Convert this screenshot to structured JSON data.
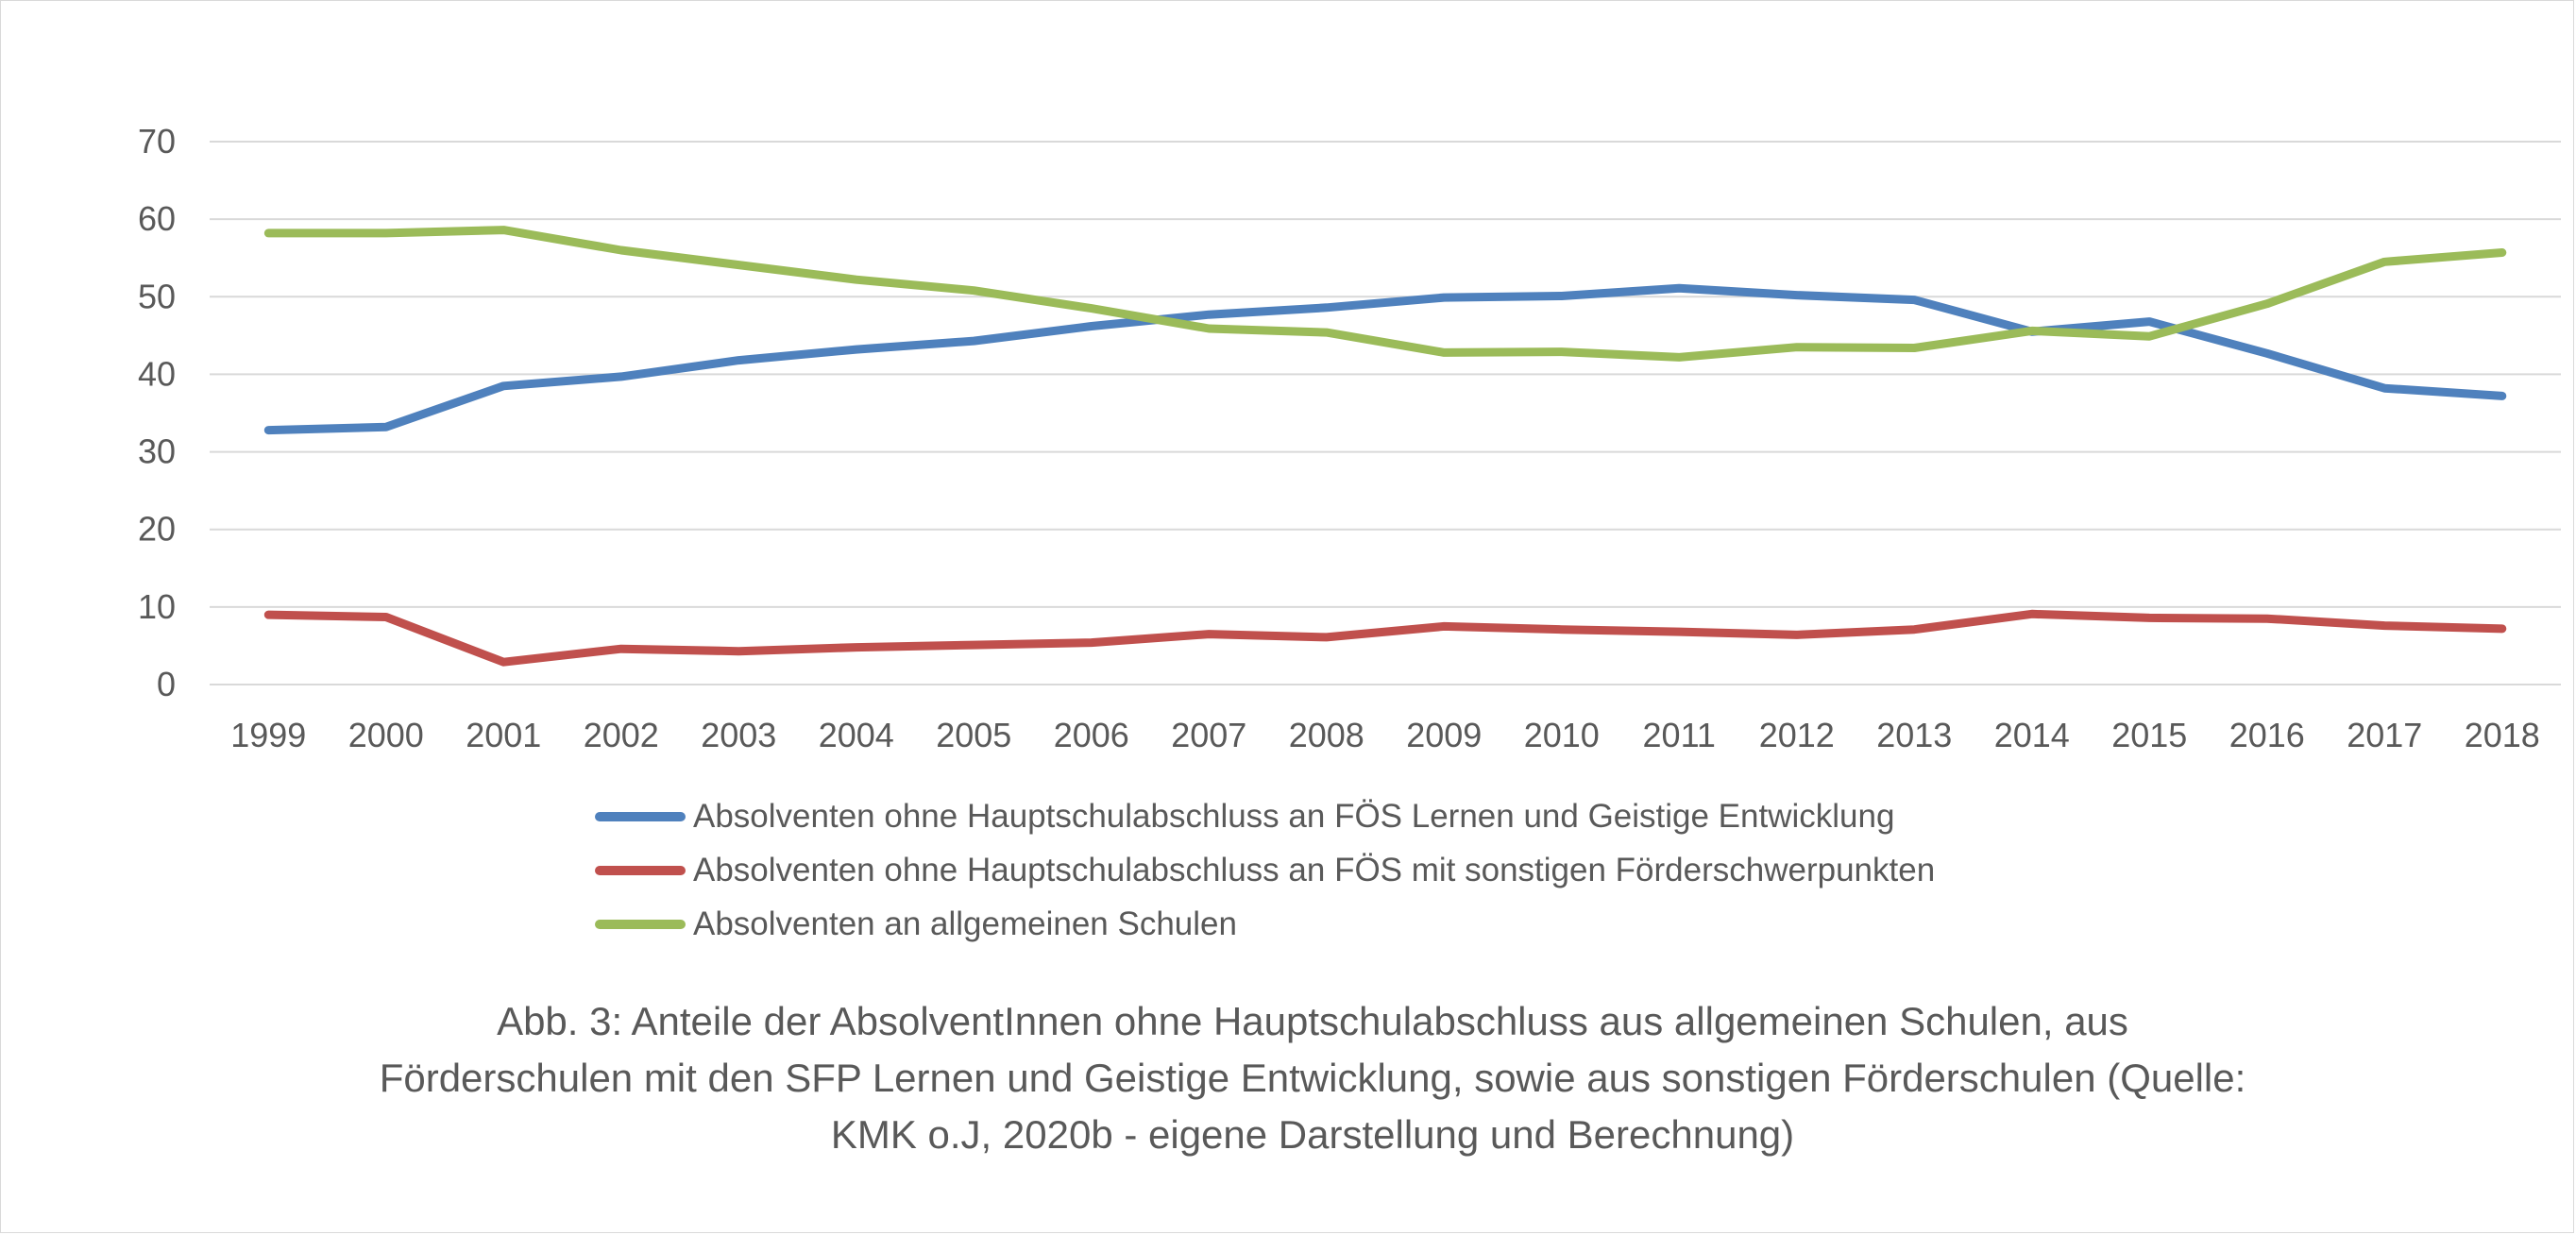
{
  "chart_data": {
    "type": "line",
    "title": "",
    "xlabel": "",
    "ylabel": "",
    "x": [
      "1999",
      "2000",
      "2001",
      "2002",
      "2003",
      "2004",
      "2005",
      "2006",
      "2007",
      "2008",
      "2009",
      "2010",
      "2011",
      "2012",
      "2013",
      "2014",
      "2015",
      "2016",
      "2017",
      "2018"
    ],
    "ylim": [
      0,
      70
    ],
    "yticks": [
      "0",
      "10",
      "20",
      "30",
      "40",
      "50",
      "60",
      "70"
    ],
    "grid": true,
    "legend_position": "bottom",
    "series": [
      {
        "name": "Absolventen ohne Hauptschulabschluss an FÖS Lernen und Geistige Entwicklung",
        "color": "#4f81bd",
        "values": [
          32.8,
          33.2,
          38.5,
          39.7,
          41.8,
          43.2,
          44.3,
          46.2,
          47.7,
          48.6,
          49.9,
          50.1,
          51.1,
          50.2,
          49.6,
          45.5,
          46.8,
          42.7,
          38.2,
          37.2
        ]
      },
      {
        "name": "Absolventen ohne Hauptschulabschluss an FÖS mit sonstigen Förderschwerpunkten",
        "color": "#c0504d",
        "values": [
          9.0,
          8.7,
          2.9,
          4.6,
          4.3,
          4.8,
          5.1,
          5.4,
          6.5,
          6.1,
          7.5,
          7.1,
          6.8,
          6.4,
          7.1,
          9.1,
          8.6,
          8.5,
          7.6,
          7.2
        ]
      },
      {
        "name": "Absolventen an allgemeinen Schulen",
        "color": "#9bbb59",
        "values": [
          58.2,
          58.2,
          58.6,
          56.0,
          54.1,
          52.2,
          50.8,
          48.5,
          45.9,
          45.4,
          42.8,
          42.9,
          42.2,
          43.5,
          43.4,
          45.6,
          44.9,
          49.1,
          54.5,
          55.7
        ]
      }
    ]
  },
  "caption": {
    "lines": [
      "Abb. 3: Anteile der AbsolventInnen ohne Hauptschulabschluss aus allgemeinen Schulen, aus",
      "Förderschulen mit den SFP Lernen und Geistige Entwicklung, sowie aus sonstigen Förderschulen (Quelle:",
      "KMK o.J, 2020b - eigene Darstellung und Berechnung)"
    ]
  }
}
